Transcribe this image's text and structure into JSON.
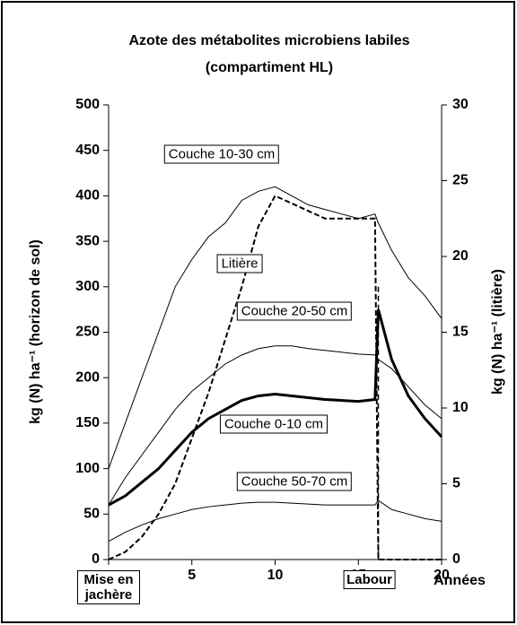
{
  "chart_data": {
    "type": "line",
    "title": "Azote des métabolites microbiens labiles",
    "subtitle": "(compartiment HL)",
    "y_label": "kg (N) ha⁻¹ (horizon de sol)",
    "y2_label": "kg (N) ha⁻¹ (litière)",
    "x_label": "Années",
    "x": [
      0,
      1,
      2,
      3,
      4,
      5,
      6,
      7,
      8,
      9,
      10,
      11,
      12,
      13,
      14,
      15,
      16,
      16.2,
      17,
      18,
      19,
      20
    ],
    "xlim": [
      0,
      20
    ],
    "xticks": [
      {
        "value": 0,
        "label": "Mise en jachère"
      },
      5,
      10,
      15,
      20
    ],
    "ylim": [
      0,
      500
    ],
    "yticks": [
      0,
      50,
      100,
      150,
      200,
      250,
      300,
      350,
      400,
      450,
      500
    ],
    "y2lim": [
      0,
      30
    ],
    "y2ticks": [
      0,
      5,
      10,
      15,
      20,
      25,
      30
    ],
    "annotations": [
      {
        "text": "Labour",
        "x": 16.2
      }
    ],
    "series": [
      {
        "name": "Couche 10-30 cm",
        "color": "#000000",
        "line_width": 1,
        "dashed": false,
        "values": [
          100,
          150,
          200,
          250,
          300,
          330,
          355,
          370,
          395,
          405,
          410,
          400,
          390,
          385,
          380,
          375,
          380,
          370,
          340,
          310,
          290,
          265
        ]
      },
      {
        "name": "Litière",
        "color": "#000000",
        "line_width": 2,
        "dashed": true,
        "axis": "y2",
        "values": [
          0,
          0.5,
          1.5,
          3,
          5,
          8,
          11,
          14.5,
          18,
          22,
          24,
          23.5,
          23,
          22.5,
          22.5,
          22.5,
          22.5,
          0,
          0,
          0,
          0,
          0
        ]
      },
      {
        "name": "Couche 20-50 cm",
        "color": "#000000",
        "line_width": 1,
        "dashed": false,
        "values": [
          60,
          90,
          115,
          140,
          165,
          185,
          200,
          215,
          225,
          232,
          235,
          235,
          232,
          230,
          228,
          226,
          225,
          220,
          210,
          190,
          170,
          155
        ]
      },
      {
        "name": "Couche 0-10 cm",
        "color": "#000000",
        "line_width": 3,
        "dashed": false,
        "values": [
          60,
          70,
          85,
          100,
          120,
          140,
          155,
          165,
          175,
          180,
          182,
          180,
          178,
          176,
          175,
          174,
          176,
          275,
          220,
          180,
          155,
          135
        ]
      },
      {
        "name": "Couche 50-70 cm",
        "color": "#000000",
        "line_width": 1,
        "dashed": false,
        "values": [
          20,
          30,
          38,
          45,
          50,
          55,
          58,
          60,
          62,
          63,
          63,
          62,
          61,
          60,
          60,
          60,
          60,
          65,
          55,
          50,
          45,
          42
        ]
      }
    ]
  }
}
